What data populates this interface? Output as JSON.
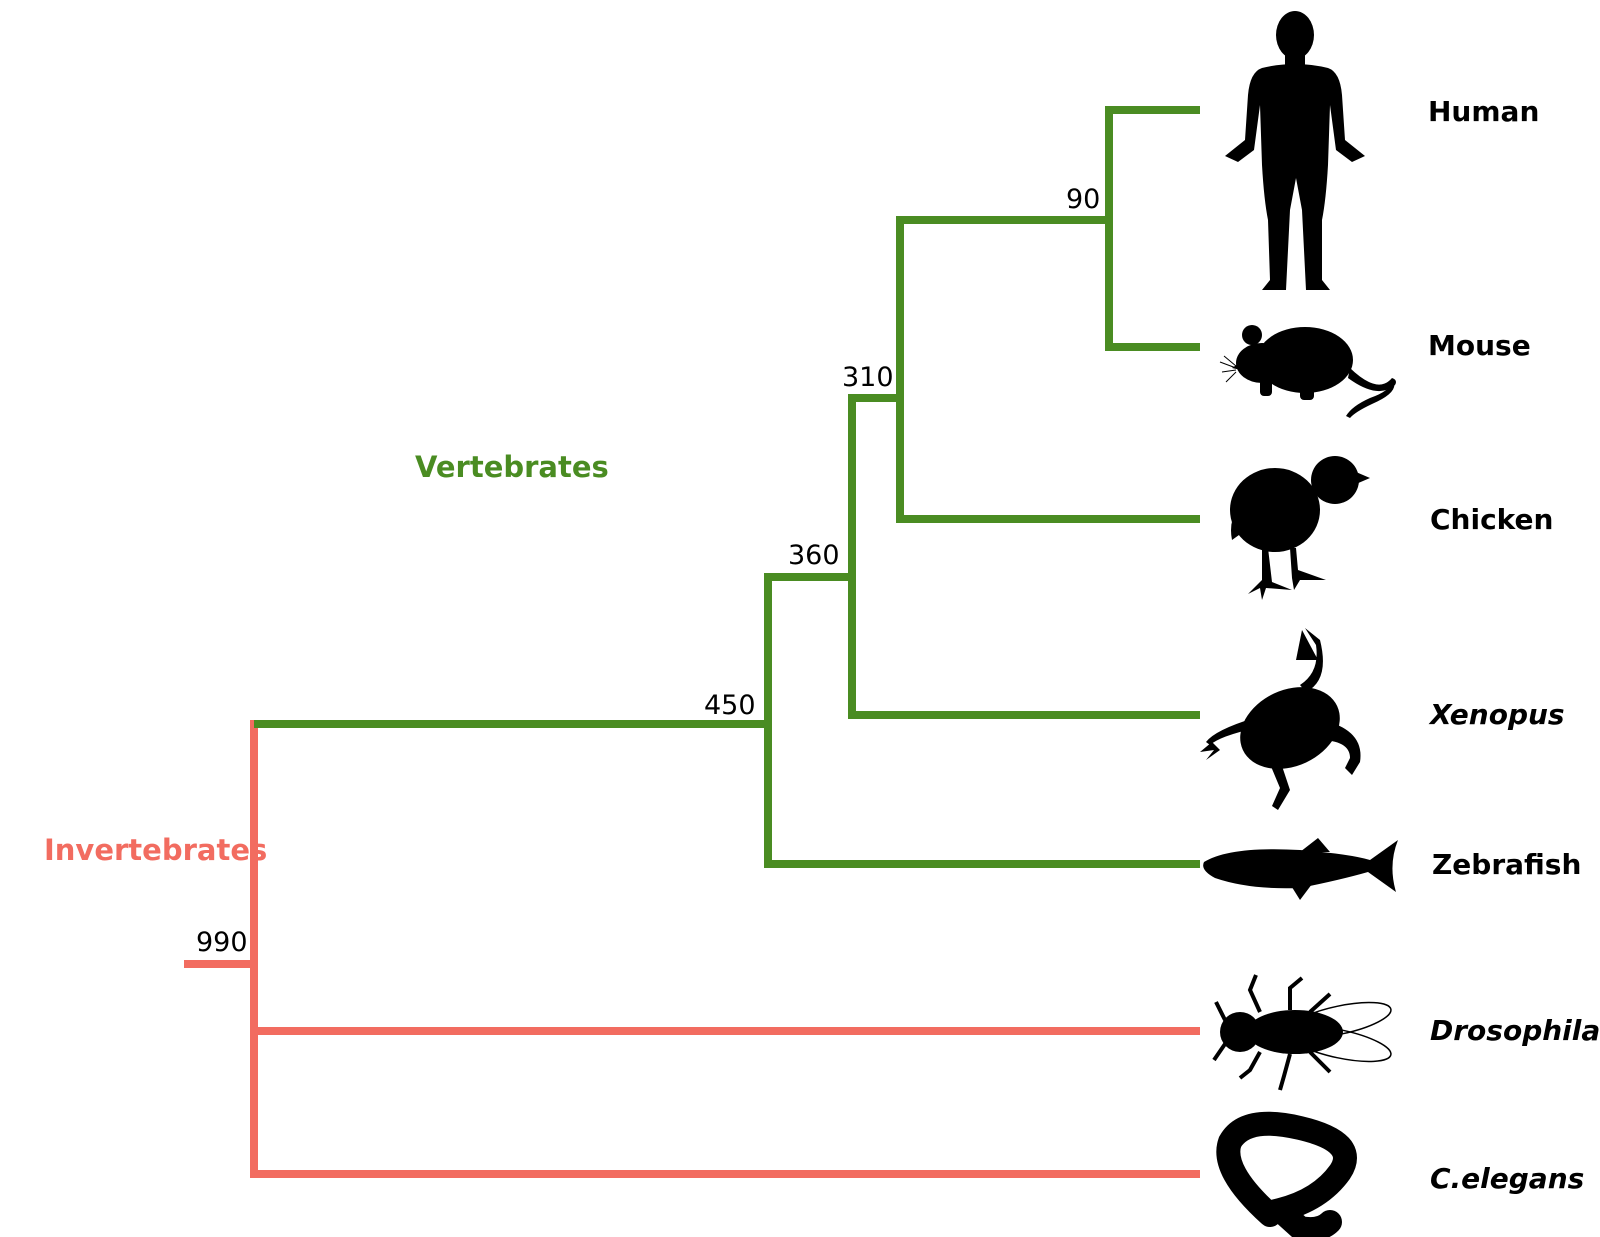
{
  "groups": {
    "vertebrates": {
      "label": "Vertebrates",
      "color": "#4a8c22"
    },
    "invertebrates": {
      "label": "Invertebrates",
      "color": "#f26c60"
    }
  },
  "nodes": {
    "root": "990",
    "vertebrates": "450",
    "tetrapods": "360",
    "amniotes": "310",
    "mammals": "90"
  },
  "taxa": [
    {
      "key": "human",
      "label": "Human",
      "italic": false,
      "icon": "human-silhouette-icon"
    },
    {
      "key": "mouse",
      "label": "Mouse",
      "italic": false,
      "icon": "mouse-silhouette-icon"
    },
    {
      "key": "chicken",
      "label": "Chicken",
      "italic": false,
      "icon": "chicken-silhouette-icon"
    },
    {
      "key": "xenopus",
      "label": "Xenopus",
      "italic": true,
      "icon": "frog-silhouette-icon"
    },
    {
      "key": "zebrafish",
      "label": "Zebrafish",
      "italic": false,
      "icon": "fish-silhouette-icon"
    },
    {
      "key": "drosophila",
      "label": "Drosophila",
      "italic": true,
      "icon": "fly-silhouette-icon"
    },
    {
      "key": "celegans",
      "label": "C.elegans",
      "italic": true,
      "icon": "worm-silhouette-icon"
    }
  ]
}
